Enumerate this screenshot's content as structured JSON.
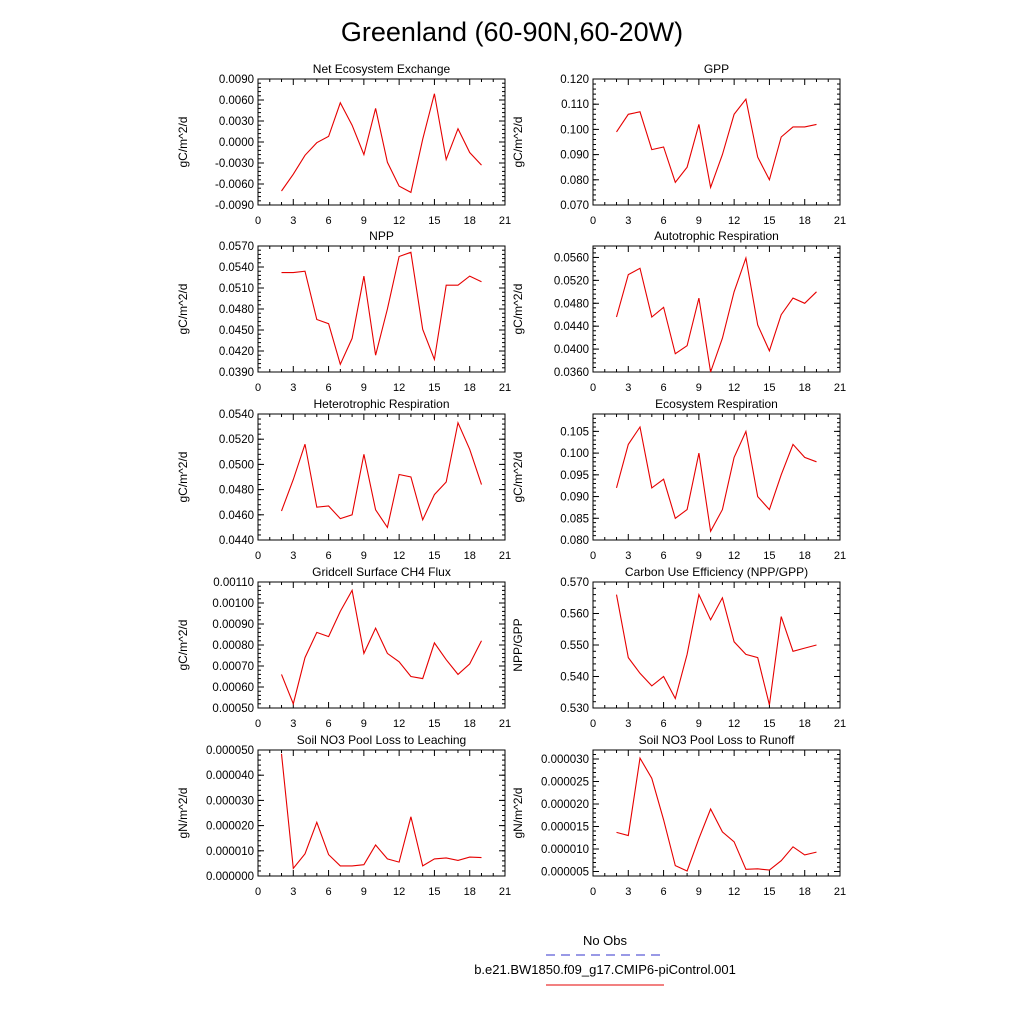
{
  "title": "Greenland (60-90N,60-20W)",
  "legend": {
    "obs_label": "No Obs",
    "obs_color": "#3333cc",
    "model_label": "b.e21.BW1850.f09_g17.CMIP6-piControl.001",
    "model_color": "#e60000"
  },
  "x_axis": {
    "range": [
      0,
      21
    ],
    "ticks": [
      0,
      3,
      6,
      9,
      12,
      15,
      18,
      21
    ],
    "tick_labels": [
      "0",
      "3",
      "6",
      "9",
      "12",
      "15",
      "18",
      "21"
    ]
  },
  "chart_data": [
    {
      "type": "line",
      "title": "Net Ecosystem Exchange",
      "ylabel": "gC/m^2/d",
      "xlim": [
        0,
        21
      ],
      "ylim": [
        -0.009,
        0.009
      ],
      "yticks": [
        -0.009,
        -0.006,
        -0.003,
        0,
        0.003,
        0.006,
        0.009
      ],
      "ytick_labels": [
        "-0.0090",
        "-0.0060",
        "-0.0030",
        "0.0000",
        "0.0030",
        "0.0060",
        "0.0090"
      ],
      "x": [
        2,
        3,
        4,
        5,
        6,
        7,
        8,
        9,
        10,
        11,
        12,
        13,
        14,
        15,
        16,
        17,
        18,
        19
      ],
      "series": [
        {
          "values": [
            -0.007,
            -0.0046,
            -0.0019,
            -0.0001,
            0.0008,
            0.0056,
            0.0024,
            -0.0018,
            0.0048,
            -0.0029,
            -0.0063,
            -0.0072,
            0.0004,
            0.0069,
            -0.0025,
            0.0019,
            -0.0015,
            -0.0033
          ]
        }
      ]
    },
    {
      "type": "line",
      "title": "GPP",
      "ylabel": "gC/m^2/d",
      "xlim": [
        0,
        21
      ],
      "ylim": [
        0.07,
        0.12
      ],
      "yticks": [
        0.07,
        0.08,
        0.09,
        0.1,
        0.11,
        0.12
      ],
      "ytick_labels": [
        "0.070",
        "0.080",
        "0.090",
        "0.100",
        "0.110",
        "0.120"
      ],
      "x": [
        2,
        3,
        4,
        5,
        6,
        7,
        8,
        9,
        10,
        11,
        12,
        13,
        14,
        15,
        16,
        17,
        18,
        19
      ],
      "series": [
        {
          "values": [
            0.099,
            0.106,
            0.107,
            0.092,
            0.093,
            0.079,
            0.085,
            0.102,
            0.077,
            0.09,
            0.106,
            0.112,
            0.089,
            0.08,
            0.097,
            0.101,
            0.101,
            0.102
          ]
        }
      ]
    },
    {
      "type": "line",
      "title": "NPP",
      "ylabel": "gC/m^2/d",
      "xlim": [
        0,
        21
      ],
      "ylim": [
        0.039,
        0.057
      ],
      "yticks": [
        0.039,
        0.042,
        0.045,
        0.048,
        0.051,
        0.054,
        0.057
      ],
      "ytick_labels": [
        "0.0390",
        "0.0420",
        "0.0450",
        "0.0480",
        "0.0510",
        "0.0540",
        "0.0570"
      ],
      "x": [
        2,
        3,
        4,
        5,
        6,
        7,
        8,
        9,
        10,
        11,
        12,
        13,
        14,
        15,
        16,
        17,
        18,
        19
      ],
      "series": [
        {
          "values": [
            0.0532,
            0.0532,
            0.0534,
            0.0465,
            0.0459,
            0.0401,
            0.0438,
            0.0527,
            0.0414,
            0.048,
            0.0555,
            0.0561,
            0.0451,
            0.0408,
            0.0514,
            0.0514,
            0.0527,
            0.0519
          ]
        }
      ]
    },
    {
      "type": "line",
      "title": "Autotrophic Respiration",
      "ylabel": "gC/m^2/d",
      "xlim": [
        0,
        21
      ],
      "ylim": [
        0.036,
        0.058
      ],
      "yticks": [
        0.036,
        0.04,
        0.044,
        0.048,
        0.052,
        0.056
      ],
      "ytick_labels": [
        "0.0360",
        "0.0400",
        "0.0440",
        "0.0480",
        "0.0520",
        "0.0560"
      ],
      "x": [
        2,
        3,
        4,
        5,
        6,
        7,
        8,
        9,
        10,
        11,
        12,
        13,
        14,
        15,
        16,
        17,
        18,
        19
      ],
      "series": [
        {
          "values": [
            0.0456,
            0.053,
            0.0541,
            0.0456,
            0.0473,
            0.0392,
            0.0406,
            0.0489,
            0.036,
            0.0419,
            0.05,
            0.0559,
            0.0442,
            0.0397,
            0.046,
            0.0489,
            0.048,
            0.05
          ]
        }
      ]
    },
    {
      "type": "line",
      "title": "Heterotrophic Respiration",
      "ylabel": "gC/m^2/d",
      "xlim": [
        0,
        21
      ],
      "ylim": [
        0.044,
        0.054
      ],
      "yticks": [
        0.044,
        0.046,
        0.048,
        0.05,
        0.052,
        0.054
      ],
      "ytick_labels": [
        "0.0440",
        "0.0460",
        "0.0480",
        "0.0500",
        "0.0520",
        "0.0540"
      ],
      "x": [
        2,
        3,
        4,
        5,
        6,
        7,
        8,
        9,
        10,
        11,
        12,
        13,
        14,
        15,
        16,
        17,
        18,
        19
      ],
      "series": [
        {
          "values": [
            0.0463,
            0.0488,
            0.0516,
            0.0466,
            0.0467,
            0.0457,
            0.046,
            0.0508,
            0.0464,
            0.045,
            0.0492,
            0.049,
            0.0456,
            0.0476,
            0.0486,
            0.0533,
            0.0512,
            0.0484
          ]
        }
      ]
    },
    {
      "type": "line",
      "title": "Ecosystem Respiration",
      "ylabel": "gC/m^2/d",
      "xlim": [
        0,
        21
      ],
      "ylim": [
        0.08,
        0.109
      ],
      "yticks": [
        0.08,
        0.085,
        0.09,
        0.095,
        0.1,
        0.105
      ],
      "ytick_labels": [
        "0.080",
        "0.085",
        "0.090",
        "0.095",
        "0.100",
        "0.105"
      ],
      "x": [
        2,
        3,
        4,
        5,
        6,
        7,
        8,
        9,
        10,
        11,
        12,
        13,
        14,
        15,
        16,
        17,
        18,
        19
      ],
      "series": [
        {
          "values": [
            0.092,
            0.102,
            0.106,
            0.092,
            0.094,
            0.085,
            0.087,
            0.1,
            0.082,
            0.087,
            0.099,
            0.105,
            0.09,
            0.087,
            0.095,
            0.102,
            0.099,
            0.098
          ]
        }
      ]
    },
    {
      "type": "line",
      "title": "Gridcell Surface CH4 Flux",
      "ylabel": "gC/m^2/d",
      "xlim": [
        0,
        21
      ],
      "ylim": [
        0.0005,
        0.0011
      ],
      "yticks": [
        0.0005,
        0.0006,
        0.0007,
        0.0008,
        0.0009,
        0.001,
        0.0011
      ],
      "ytick_labels": [
        "0.00050",
        "0.00060",
        "0.00070",
        "0.00080",
        "0.00090",
        "0.00100",
        "0.00110"
      ],
      "x": [
        2,
        3,
        4,
        5,
        6,
        7,
        8,
        9,
        10,
        11,
        12,
        13,
        14,
        15,
        16,
        17,
        18,
        19
      ],
      "series": [
        {
          "values": [
            0.00066,
            0.00052,
            0.00074,
            0.00086,
            0.00084,
            0.00096,
            0.00106,
            0.00076,
            0.00088,
            0.00076,
            0.00072,
            0.00065,
            0.00064,
            0.00081,
            0.00073,
            0.00066,
            0.00071,
            0.00082
          ]
        }
      ]
    },
    {
      "type": "line",
      "title": "Carbon Use Efficiency (NPP/GPP)",
      "ylabel": "NPP/GPP",
      "xlim": [
        0,
        21
      ],
      "ylim": [
        0.53,
        0.57
      ],
      "yticks": [
        0.53,
        0.54,
        0.55,
        0.56,
        0.57
      ],
      "ytick_labels": [
        "0.530",
        "0.540",
        "0.550",
        "0.560",
        "0.570"
      ],
      "x": [
        2,
        3,
        4,
        5,
        6,
        7,
        8,
        9,
        10,
        11,
        12,
        13,
        14,
        15,
        16,
        17,
        18,
        19
      ],
      "series": [
        {
          "values": [
            0.566,
            0.546,
            0.541,
            0.537,
            0.54,
            0.533,
            0.547,
            0.566,
            0.558,
            0.565,
            0.551,
            0.547,
            0.546,
            0.531,
            0.559,
            0.548,
            0.549,
            0.55
          ]
        }
      ]
    },
    {
      "type": "line",
      "title": "Soil NO3 Pool Loss to Leaching",
      "ylabel": "gN/m^2/d",
      "xlim": [
        0,
        21
      ],
      "ylim": [
        0,
        5e-05
      ],
      "yticks": [
        0,
        1e-05,
        2e-05,
        3e-05,
        4e-05,
        5e-05
      ],
      "ytick_labels": [
        "0.000000",
        "0.000010",
        "0.000020",
        "0.000030",
        "0.000040",
        "0.000050"
      ],
      "x": [
        2,
        3,
        4,
        5,
        6,
        7,
        8,
        9,
        10,
        11,
        12,
        13,
        14,
        15,
        16,
        17,
        18,
        19
      ],
      "series": [
        {
          "values": [
            4.85e-05,
            3e-06,
            8.8e-06,
            2.13e-05,
            8.5e-06,
            4e-06,
            4e-06,
            4.5e-06,
            1.23e-05,
            6.8e-06,
            5.5e-06,
            2.35e-05,
            4e-06,
            6.8e-06,
            7.2e-06,
            6.2e-06,
            7.5e-06,
            7.3e-06
          ]
        }
      ]
    },
    {
      "type": "line",
      "title": "Soil NO3 Pool Loss to Runoff",
      "ylabel": "gN/m^2/d",
      "xlim": [
        0,
        21
      ],
      "ylim": [
        4e-06,
        3.2e-05
      ],
      "yticks": [
        5e-06,
        1e-05,
        1.5e-05,
        2e-05,
        2.5e-05,
        3e-05
      ],
      "ytick_labels": [
        "0.000005",
        "0.000010",
        "0.000015",
        "0.000020",
        "0.000025",
        "0.000030"
      ],
      "x": [
        2,
        3,
        4,
        5,
        6,
        7,
        8,
        9,
        10,
        11,
        12,
        13,
        14,
        15,
        16,
        17,
        18,
        19
      ],
      "series": [
        {
          "values": [
            1.37e-05,
            1.3e-05,
            3.02e-05,
            2.57e-05,
            1.65e-05,
            6.3e-06,
            5.1e-06,
            1.23e-05,
            1.89e-05,
            1.38e-05,
            1.16e-05,
            5.5e-06,
            5.6e-06,
            5.3e-06,
            7.4e-06,
            1.05e-05,
            8.7e-06,
            9.3e-06
          ]
        }
      ]
    }
  ]
}
